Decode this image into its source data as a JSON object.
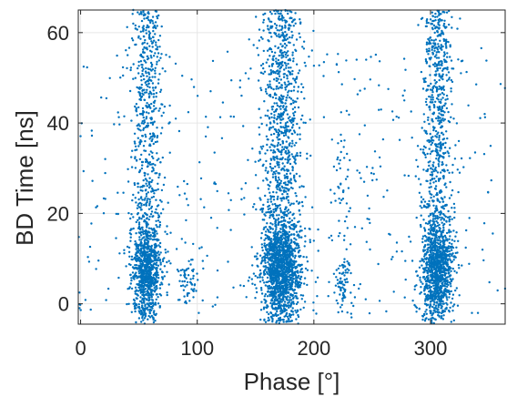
{
  "chart_data": {
    "type": "scatter",
    "title": "",
    "xlabel": "Phase [°]",
    "ylabel": "BD Time [ns]",
    "xlim": [
      -2,
      364
    ],
    "ylim": [
      -4.5,
      65
    ],
    "xticks": [
      0,
      100,
      200,
      300
    ],
    "yticks": [
      0,
      20,
      40,
      60
    ],
    "grid": true,
    "marker_color": "#0072BD",
    "point_count_approx": 6000,
    "clusters": [
      {
        "x_center": 57,
        "x_spread": 6.5,
        "y_range": [
          -4,
          65
        ],
        "dense_y_range": [
          0,
          15
        ],
        "relative_density": 1.0
      },
      {
        "x_center": 172,
        "x_spread": 8.5,
        "y_range": [
          -4,
          65
        ],
        "dense_y_range": [
          0,
          15
        ],
        "relative_density": 1.6
      },
      {
        "x_center": 306,
        "x_spread": 7.0,
        "y_range": [
          -4,
          65
        ],
        "dense_y_range": [
          0,
          15
        ],
        "relative_density": 1.2
      },
      {
        "x_center": 225,
        "x_spread": 4.0,
        "y_range": [
          -3,
          38
        ],
        "dense_y_range": [
          0,
          10
        ],
        "relative_density": 0.08
      },
      {
        "x_center": 92,
        "x_spread": 4.0,
        "y_range": [
          0,
          10
        ],
        "dense_y_range": [
          2,
          8
        ],
        "relative_density": 0.04
      }
    ]
  }
}
